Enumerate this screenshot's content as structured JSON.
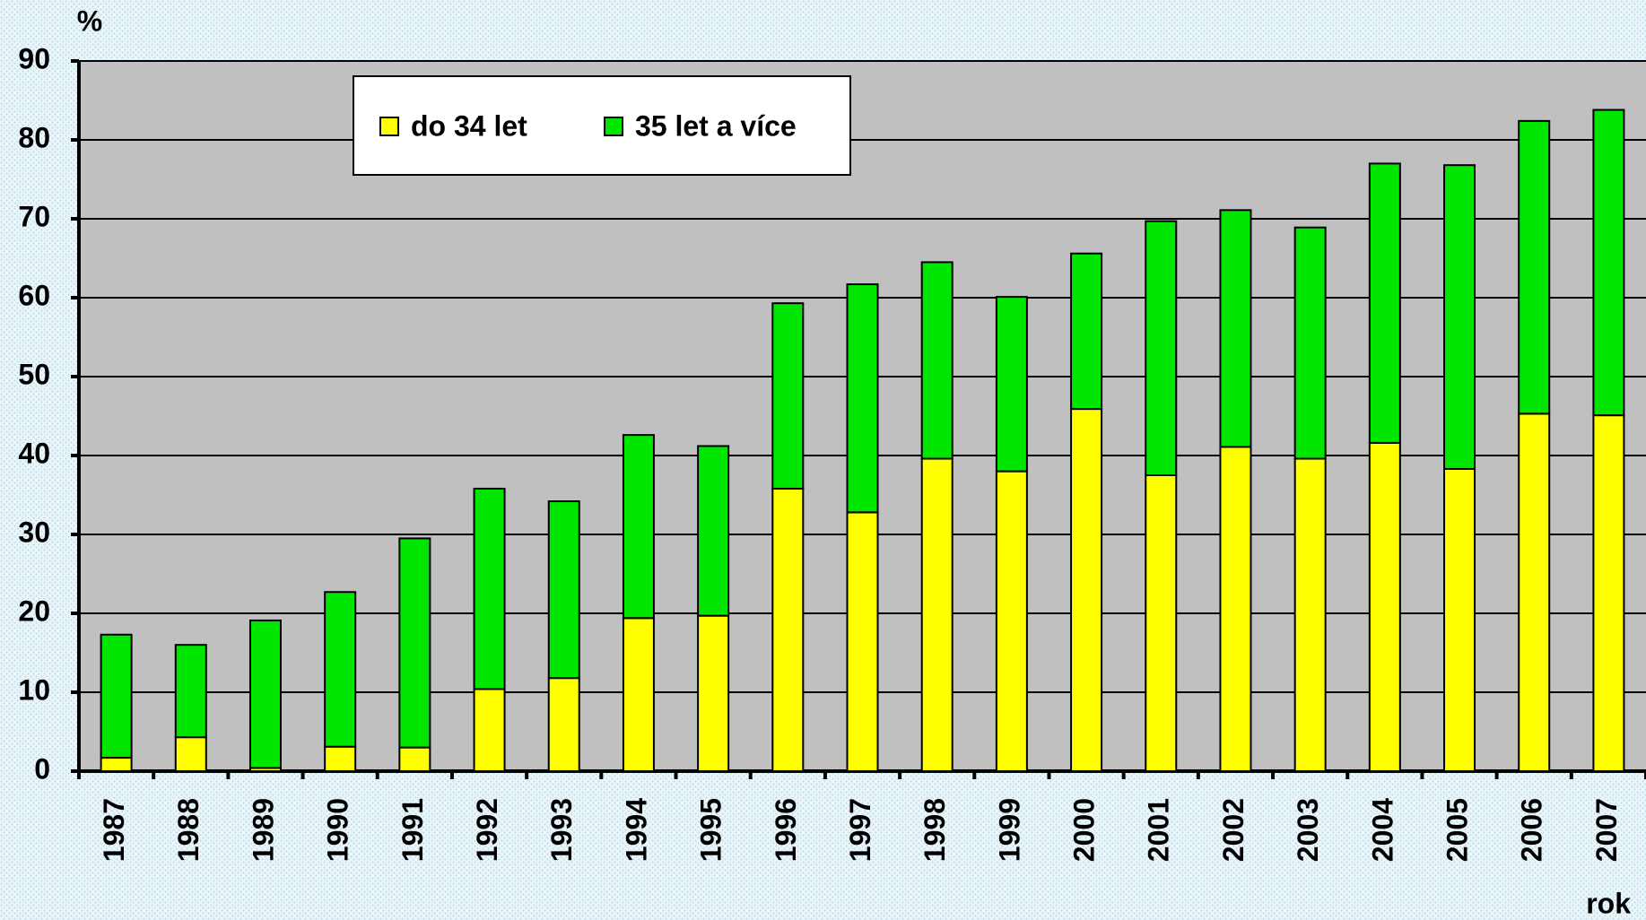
{
  "chart_data": {
    "type": "stacked_bar",
    "y_axis_label": "%",
    "x_axis_label": "rok",
    "categories": [
      "1987",
      "1988",
      "1989",
      "1990",
      "1991",
      "1992",
      "1993",
      "1994",
      "1995",
      "1996",
      "1997",
      "1998",
      "1999",
      "2000",
      "2001",
      "2002",
      "2003",
      "2004",
      "2005",
      "2006",
      "2007"
    ],
    "series": [
      {
        "name": "do 34 let",
        "color": "#ffff00",
        "values": [
          1.7,
          4.3,
          0.4,
          3.1,
          3.0,
          10.4,
          11.8,
          19.4,
          19.7,
          35.8,
          32.8,
          39.6,
          38.0,
          45.9,
          37.5,
          41.1,
          39.6,
          41.6,
          38.3,
          45.3,
          45.1
        ]
      },
      {
        "name": "35 let a více",
        "color": "#00e600",
        "values": [
          15.6,
          11.7,
          18.7,
          19.6,
          26.5,
          25.4,
          22.4,
          23.2,
          21.5,
          23.5,
          28.9,
          24.9,
          22.1,
          19.7,
          32.2,
          30.0,
          29.3,
          35.4,
          38.5,
          37.1,
          38.7
        ]
      }
    ],
    "ylim": [
      0,
      90
    ],
    "yticks": [
      0,
      10,
      20,
      30,
      40,
      50,
      60,
      70,
      80,
      90
    ],
    "grid": true
  }
}
